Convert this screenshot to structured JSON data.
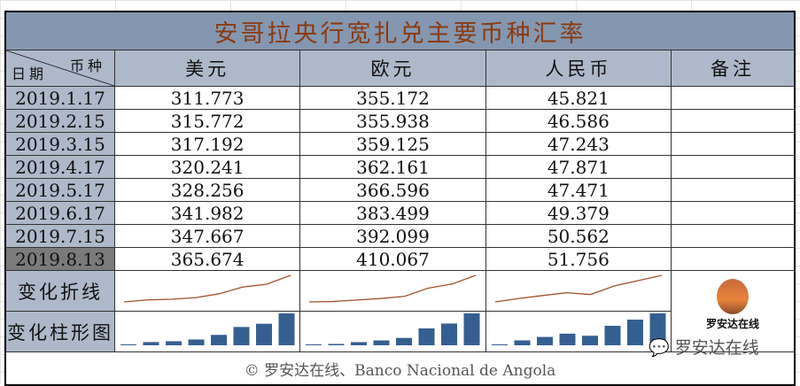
{
  "title": "安哥拉央行宽扎兑主要币种汇率",
  "corner": {
    "currency": "币种",
    "date": "日期"
  },
  "headers": [
    "美元",
    "欧元",
    "人民币",
    "备注"
  ],
  "rows": [
    {
      "date": "2019.1.17",
      "usd": "311.773",
      "eur": "355.172",
      "cny": "45.821"
    },
    {
      "date": "2019.2.15",
      "usd": "315.772",
      "eur": "355.938",
      "cny": "46.586"
    },
    {
      "date": "2019.3.15",
      "usd": "317.192",
      "eur": "359.125",
      "cny": "47.243"
    },
    {
      "date": "2019.4.17",
      "usd": "320.241",
      "eur": "362.161",
      "cny": "47.871"
    },
    {
      "date": "2019.5.17",
      "usd": "328.256",
      "eur": "366.596",
      "cny": "47.471"
    },
    {
      "date": "2019.6.17",
      "usd": "341.982",
      "eur": "383.499",
      "cny": "49.379"
    },
    {
      "date": "2019.7.15",
      "usd": "347.667",
      "eur": "392.099",
      "cny": "50.562"
    },
    {
      "date": "2019.8.13",
      "usd": "365.674",
      "eur": "410.067",
      "cny": "51.756"
    }
  ],
  "line_label": "变化折线",
  "bar_label": "变化柱形图",
  "logo_text": "罗安达在线",
  "footer": "© 罗安达在线、Banco Nacional de Angola",
  "watermark": "罗安达在线",
  "colors": {
    "header": "#8497b0",
    "label": "#adb9ca",
    "title_text": "#8b3a0f",
    "line": "#a0522d",
    "bar": "#365f91"
  }
}
